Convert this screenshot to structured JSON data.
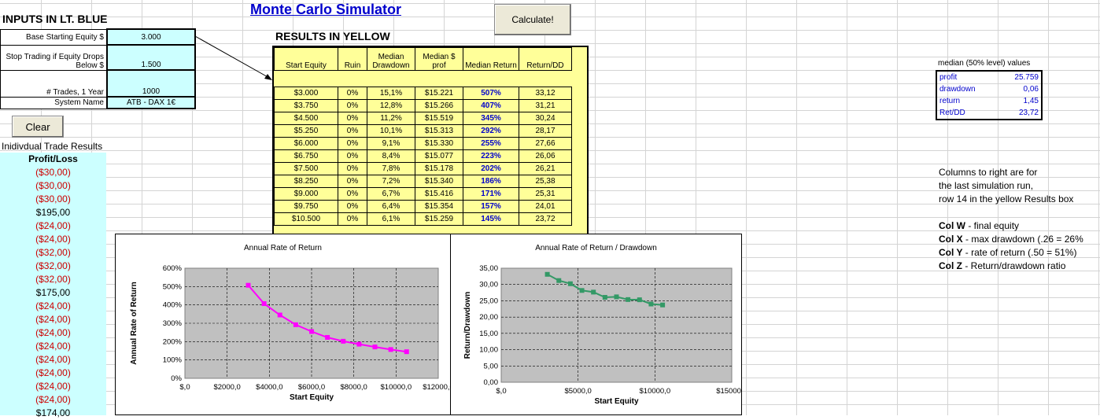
{
  "inputs": {
    "title": "INPUTS IN LT. BLUE",
    "rows": [
      {
        "label": "Base Starting Equity $",
        "value": "3.000"
      },
      {
        "label": "Stop Trading if Equity Drops Below $",
        "value": "1.500"
      },
      {
        "label": "# Trades, 1 Year",
        "value": "1000"
      },
      {
        "label": "System Name",
        "value": "ATB  - DAX 1€"
      }
    ]
  },
  "header": {
    "title": "Monte Carlo Simulator",
    "calculate_label": "Calculate!",
    "clear_label": "Clear"
  },
  "results": {
    "title": "RESULTS IN YELLOW",
    "columns": [
      "Start Equity",
      "Ruin",
      "Median Drawdown",
      "Median $ prof",
      "Median Return",
      "Return/DD"
    ],
    "rows": [
      [
        "$3.000",
        "0%",
        "15,1%",
        "$15.221",
        "507%",
        "33,12"
      ],
      [
        "$3.750",
        "0%",
        "12,8%",
        "$15.266",
        "407%",
        "31,21"
      ],
      [
        "$4.500",
        "0%",
        "11,2%",
        "$15.519",
        "345%",
        "30,24"
      ],
      [
        "$5.250",
        "0%",
        "10,1%",
        "$15.313",
        "292%",
        "28,17"
      ],
      [
        "$6.000",
        "0%",
        "9,1%",
        "$15.330",
        "255%",
        "27,66"
      ],
      [
        "$6.750",
        "0%",
        "8,4%",
        "$15.077",
        "223%",
        "26,06"
      ],
      [
        "$7.500",
        "0%",
        "7,8%",
        "$15.178",
        "202%",
        "26,21"
      ],
      [
        "$8.250",
        "0%",
        "7,2%",
        "$15.340",
        "186%",
        "25,38"
      ],
      [
        "$9.000",
        "0%",
        "6,7%",
        "$15.416",
        "171%",
        "25,31"
      ],
      [
        "$9.750",
        "0%",
        "6,4%",
        "$15.354",
        "157%",
        "24,01"
      ],
      [
        "$10.500",
        "0%",
        "6,1%",
        "$15.259",
        "145%",
        "23,72"
      ]
    ]
  },
  "trades": {
    "title": "Inidivdual Trade Results",
    "header": "Profit/Loss",
    "values": [
      "($30,00)",
      "($30,00)",
      "($30,00)",
      "$195,00",
      "($24,00)",
      "($24,00)",
      "($32,00)",
      "($32,00)",
      "($32,00)",
      "$175,00",
      "($24,00)",
      "($24,00)",
      "($24,00)",
      "($24,00)",
      "($24,00)",
      "($24,00)",
      "($24,00)",
      "($24,00)",
      "$174,00"
    ]
  },
  "median": {
    "title": "median (50% level) values",
    "rows": [
      {
        "key": "profit",
        "value": "25.759"
      },
      {
        "key": "drawdown",
        "value": "0,06"
      },
      {
        "key": "return",
        "value": "1,45"
      },
      {
        "key": "Ret/DD",
        "value": "23,72"
      }
    ]
  },
  "notes": {
    "lines": [
      "Columns to right are for",
      "the last simulation run,",
      "row 14 in the yellow Results box"
    ],
    "cols": [
      {
        "col": "Col W",
        "desc": " - final equity"
      },
      {
        "col": "Col X",
        "desc": " - max drawdown (.26 = 26%"
      },
      {
        "col": "Col Y",
        "desc": " - rate of return (.50 = 51%)"
      },
      {
        "col": "Col Z",
        "desc": " - Return/drawdown ratio"
      }
    ]
  },
  "chart_data": [
    {
      "type": "line",
      "title": "Annual Rate of Return",
      "xlabel": "Start Equity",
      "ylabel": "Annual Rate of Return",
      "xlim": [
        0,
        12000
      ],
      "ylim": [
        0,
        600
      ],
      "xticks": [
        "$,0",
        "$2000,0",
        "$4000,0",
        "$6000,0",
        "$8000,0",
        "$10000,0",
        "$12000,0"
      ],
      "yticks": [
        "0%",
        "100%",
        "200%",
        "300%",
        "400%",
        "500%",
        "600%"
      ],
      "color": "#ff00ff",
      "x": [
        3000,
        3750,
        4500,
        5250,
        6000,
        6750,
        7500,
        8250,
        9000,
        9750,
        10500
      ],
      "y": [
        507,
        407,
        345,
        292,
        255,
        223,
        202,
        186,
        171,
        157,
        145
      ]
    },
    {
      "type": "line",
      "title": "Annual Rate of Return / Drawdown",
      "xlabel": "Start Equity",
      "ylabel": "Return/Drawdown",
      "xlim": [
        0,
        15000
      ],
      "ylim": [
        0,
        35
      ],
      "xticks": [
        "$,0",
        "$5000,0",
        "$10000,0",
        "$15000,0"
      ],
      "yticks": [
        "0,00",
        "5,00",
        "10,00",
        "15,00",
        "20,00",
        "25,00",
        "30,00",
        "35,00"
      ],
      "color": "#339966",
      "x": [
        3000,
        3750,
        4500,
        5250,
        6000,
        6750,
        7500,
        8250,
        9000,
        9750,
        10500
      ],
      "y": [
        33.12,
        31.21,
        30.24,
        28.17,
        27.66,
        26.06,
        26.21,
        25.38,
        25.31,
        24.01,
        23.72
      ]
    }
  ]
}
